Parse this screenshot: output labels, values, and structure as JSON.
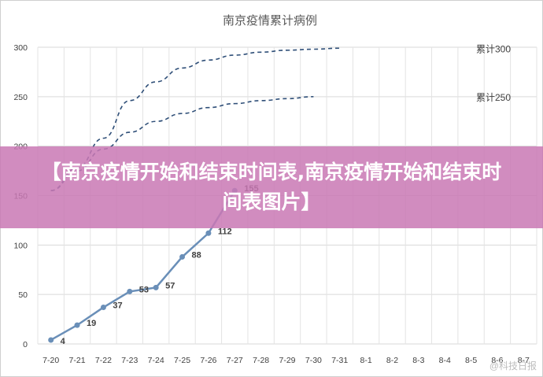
{
  "chart_data": {
    "type": "line",
    "title": "南京疫情累计病例",
    "x_labels": [
      "7-20",
      "7-21",
      "7-22",
      "7-23",
      "7-24",
      "7-25",
      "7-26",
      "7-27",
      "7-28",
      "7-29",
      "7-30",
      "7-31",
      "8-1",
      "8-2",
      "8-3",
      "8-4",
      "8-5",
      "8-6",
      "8-7"
    ],
    "y_ticks": [
      0,
      50,
      100,
      150,
      200,
      250,
      300
    ],
    "ylim": [
      0,
      300
    ],
    "grid": true,
    "series": [
      {
        "kind": "actual",
        "values": [
          4,
          19,
          37,
          53,
          57,
          88,
          112,
          155
        ],
        "labels": [
          "4",
          "19",
          "37",
          "53",
          "57",
          "88",
          "112",
          "155"
        ]
      },
      {
        "kind": "projection",
        "name": "累计300",
        "values": [
          155,
          178,
          208,
          246,
          265,
          279,
          287,
          292,
          295,
          297,
          298,
          299
        ]
      },
      {
        "kind": "projection",
        "name": "累计250",
        "values": [
          155,
          175,
          197,
          214,
          225,
          233,
          239,
          243,
          246,
          248,
          250
        ]
      }
    ],
    "colors": {
      "actual": "#6a8fb8",
      "projection": "#2f4f78"
    }
  },
  "banner": {
    "text": "【南京疫情开始和结束时间表,南京疫情开始和结束时间表图片】"
  },
  "watermark": {
    "text": "@科技日报"
  }
}
